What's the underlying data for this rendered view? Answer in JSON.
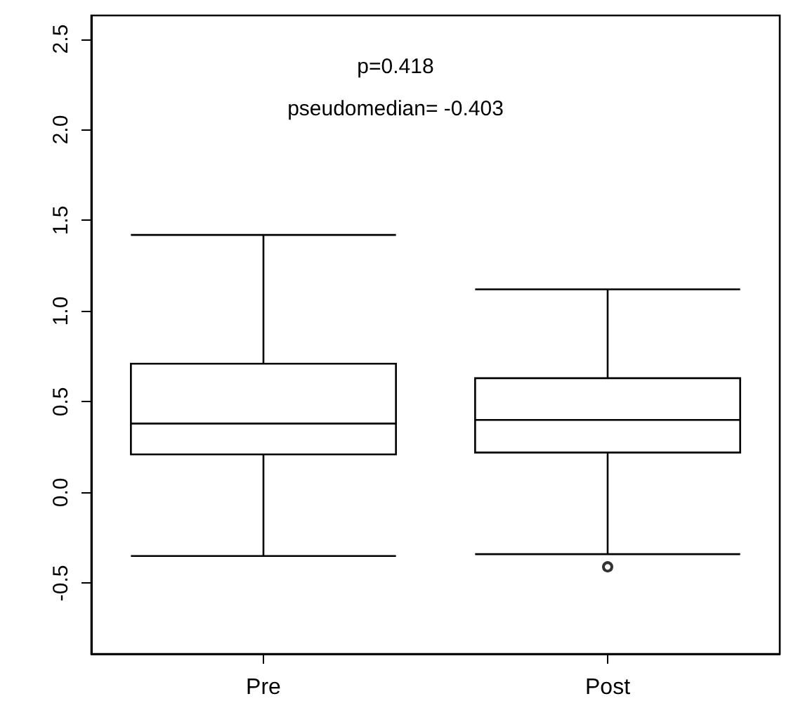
{
  "chart_data": {
    "type": "box",
    "categories": [
      "Pre",
      "Post"
    ],
    "boxes": [
      {
        "low": -0.35,
        "q1": 0.21,
        "median": 0.38,
        "q3": 0.71,
        "high": 1.42
      },
      {
        "low": -0.34,
        "q1": 0.22,
        "median": 0.4,
        "q3": 0.63,
        "high": 1.12,
        "outliers": [
          -0.41
        ]
      }
    ],
    "ylim": [
      -0.89,
      2.63
    ],
    "yticks": [
      -0.5,
      {
        "value": 0,
        "label": "0.0"
      },
      0.5,
      {
        "value": 1,
        "label": "1.0"
      },
      1.5,
      {
        "value": 2,
        "label": "2.0"
      },
      2.5
    ],
    "annotations": [
      "p=0.418",
      "pseudomedian= -0.403"
    ]
  }
}
